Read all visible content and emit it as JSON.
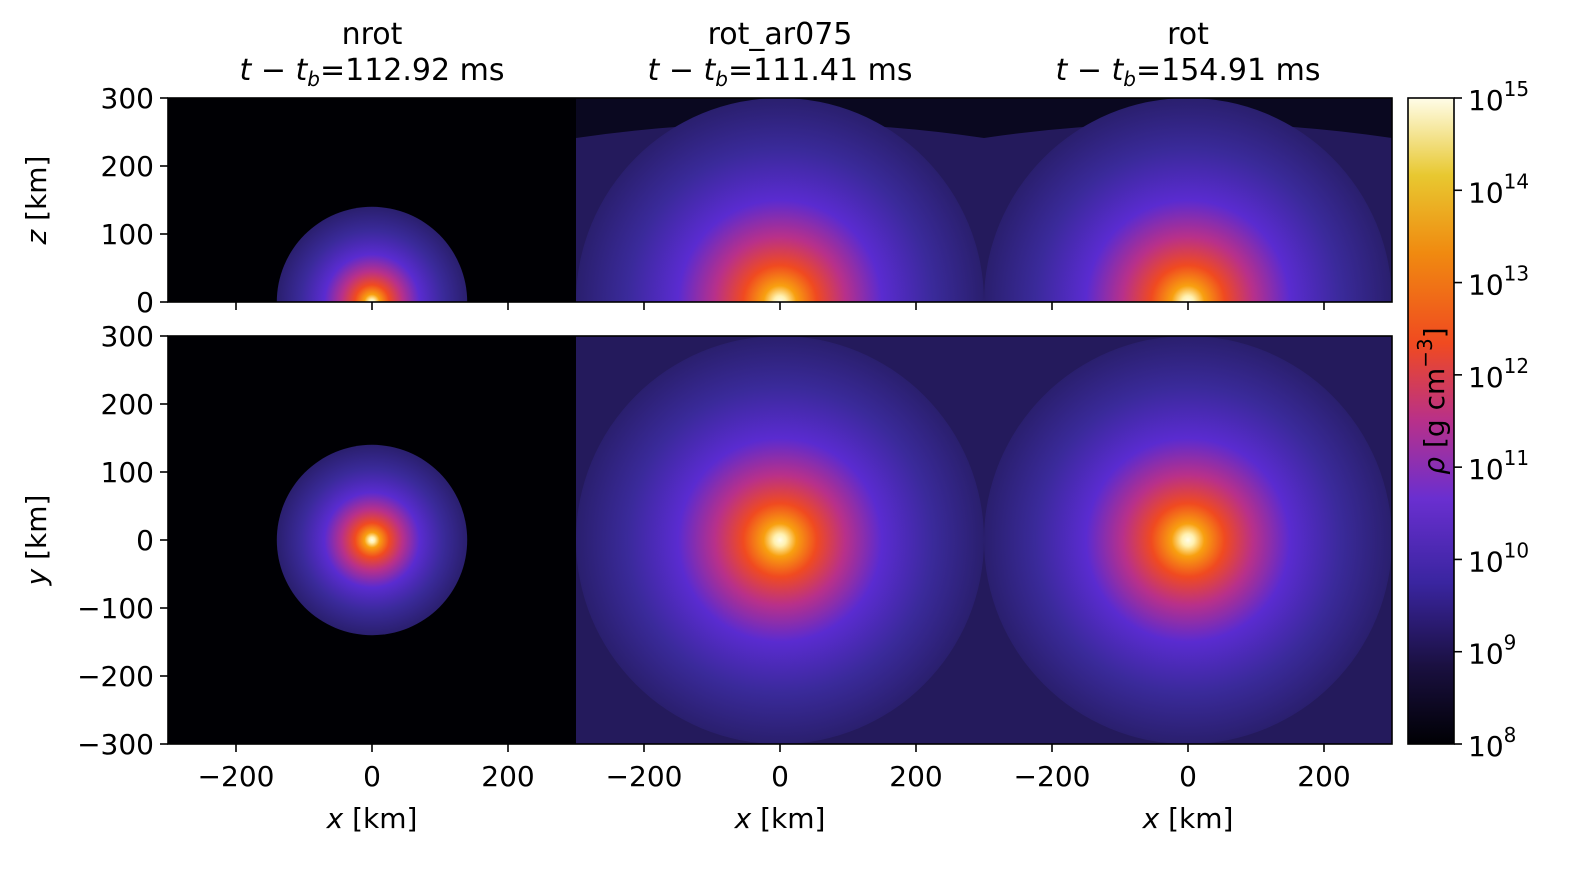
{
  "chart_data": {
    "type": "heatmap",
    "colormap": "inferno-like",
    "colors": {
      "background_low": "#000004",
      "mid": "#5a2bd0",
      "high_red": "#f04a20",
      "high_orange": "#f8a010",
      "peak": "#fffde8"
    },
    "panels": [
      {
        "title_line1": "nrot",
        "title_time": "=112.92 ms",
        "title_time_value": 112.92,
        "shock_radius_km": 140,
        "envelope": "none"
      },
      {
        "title_line1": "rot_ar075",
        "title_time": "=111.41 ms",
        "title_time_value": 111.41,
        "shock_radius_km": 300,
        "envelope": "extended"
      },
      {
        "title_line1": "rot",
        "title_time": "=154.91 ms",
        "title_time_value": 154.91,
        "shock_radius_km": 300,
        "envelope": "extended"
      }
    ],
    "time_label_prefix": "t − t",
    "time_label_sub": "b",
    "rows": [
      {
        "name": "xz",
        "ylabel": "z [km]",
        "ylim": [
          0,
          300
        ],
        "yticks": [
          "300",
          "200",
          "100",
          "0"
        ]
      },
      {
        "name": "xy",
        "ylabel": "y [km]",
        "ylim": [
          -300,
          300
        ],
        "yticks": [
          "300",
          "200",
          "100",
          "0",
          "−100",
          "−200",
          "−300"
        ]
      }
    ],
    "xlabel": "x [km]",
    "xlim": [
      -300,
      300
    ],
    "xticks": [
      "−200",
      "0",
      "200"
    ],
    "colorbar": {
      "label": "ρ [g cm",
      "label_exp": "−3",
      "label_close": "]",
      "scale": "log",
      "range": [
        100000000.0,
        1000000000000000.0
      ],
      "tick_base": "10",
      "tick_exponents": [
        "15",
        "14",
        "13",
        "12",
        "11",
        "10",
        "9",
        "8"
      ]
    }
  }
}
